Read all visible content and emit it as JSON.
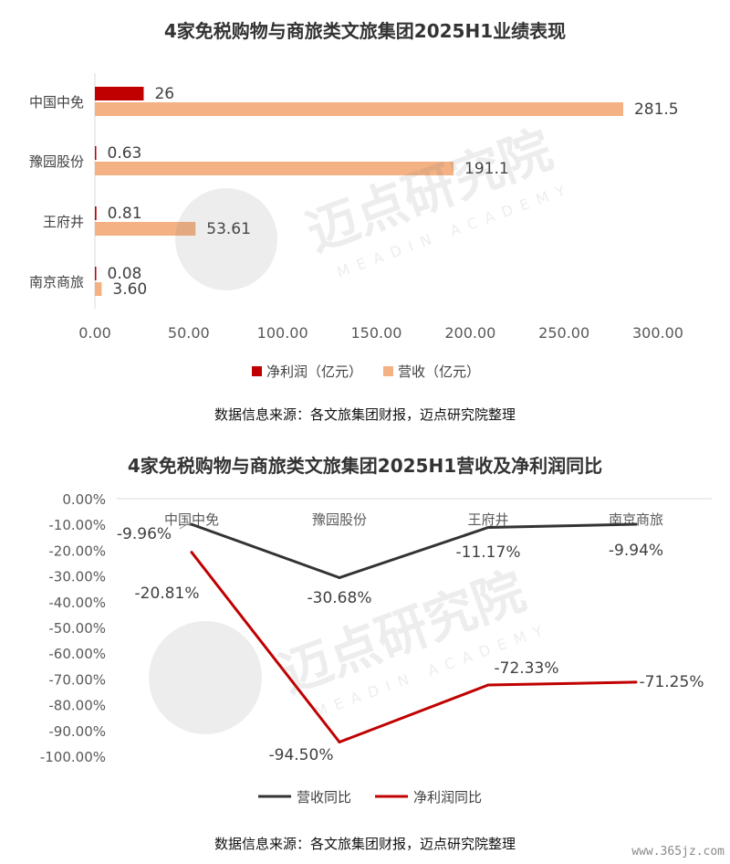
{
  "watermark": {
    "brand": "迈点研究院",
    "sub": "MEADIN ACADEMY"
  },
  "corner_text": "www.365jz.com",
  "chart_data": [
    {
      "type": "bar",
      "orientation": "horizontal",
      "title": "4家免税购物与商旅类文旅集团2025H1业绩表现",
      "source": "数据信息来源：各文旅集团财报，迈点研究院整理",
      "categories": [
        "中国中免",
        "豫园股份",
        "王府井",
        "南京商旅"
      ],
      "series": [
        {
          "name": "净利润（亿元）",
          "values": [
            26,
            0.63,
            0.81,
            0.08
          ],
          "labels": [
            "26",
            "0.63",
            "0.81",
            "0.08"
          ],
          "color": "#c00000"
        },
        {
          "name": "营收（亿元）",
          "values": [
            281.5,
            191.1,
            53.61,
            3.6
          ],
          "labels": [
            "281.5",
            "191.1",
            "53.61",
            "3.60"
          ],
          "color": "#f4b183"
        }
      ],
      "xlim": [
        0,
        300
      ],
      "xticks": [
        "0.00",
        "50.00",
        "100.00",
        "150.00",
        "200.00",
        "250.00",
        "300.00"
      ],
      "xtick_values": [
        0,
        50,
        100,
        150,
        200,
        250,
        300
      ],
      "legend": "bottom",
      "grid": false
    },
    {
      "type": "line",
      "title": "4家免税购物与商旅类文旅集团2025H1营收及净利润同比",
      "source": "数据信息来源：各文旅集团财报，迈点研究院整理",
      "categories": [
        "中国中免",
        "豫园股份",
        "王府井",
        "南京商旅"
      ],
      "series": [
        {
          "name": "营收同比",
          "values": [
            -9.96,
            -30.68,
            -11.17,
            -9.94
          ],
          "labels": [
            "-9.96%",
            "-30.68%",
            "-11.17%",
            "-9.94%"
          ],
          "color": "#333333"
        },
        {
          "name": "净利润同比",
          "values": [
            -20.81,
            -94.5,
            -72.33,
            -71.25
          ],
          "labels": [
            "-20.81%",
            "-94.50%",
            "-72.33%",
            "-71.25%"
          ],
          "color": "#c00000"
        }
      ],
      "ylim": [
        -100,
        0
      ],
      "yticks": [
        "0.00%",
        "-10.00%",
        "-20.00%",
        "-30.00%",
        "-40.00%",
        "-50.00%",
        "-60.00%",
        "-70.00%",
        "-80.00%",
        "-90.00%",
        "-100.00%"
      ],
      "ytick_values": [
        0,
        -10,
        -20,
        -30,
        -40,
        -50,
        -60,
        -70,
        -80,
        -90,
        -100
      ],
      "legend": "bottom",
      "grid": false
    }
  ]
}
